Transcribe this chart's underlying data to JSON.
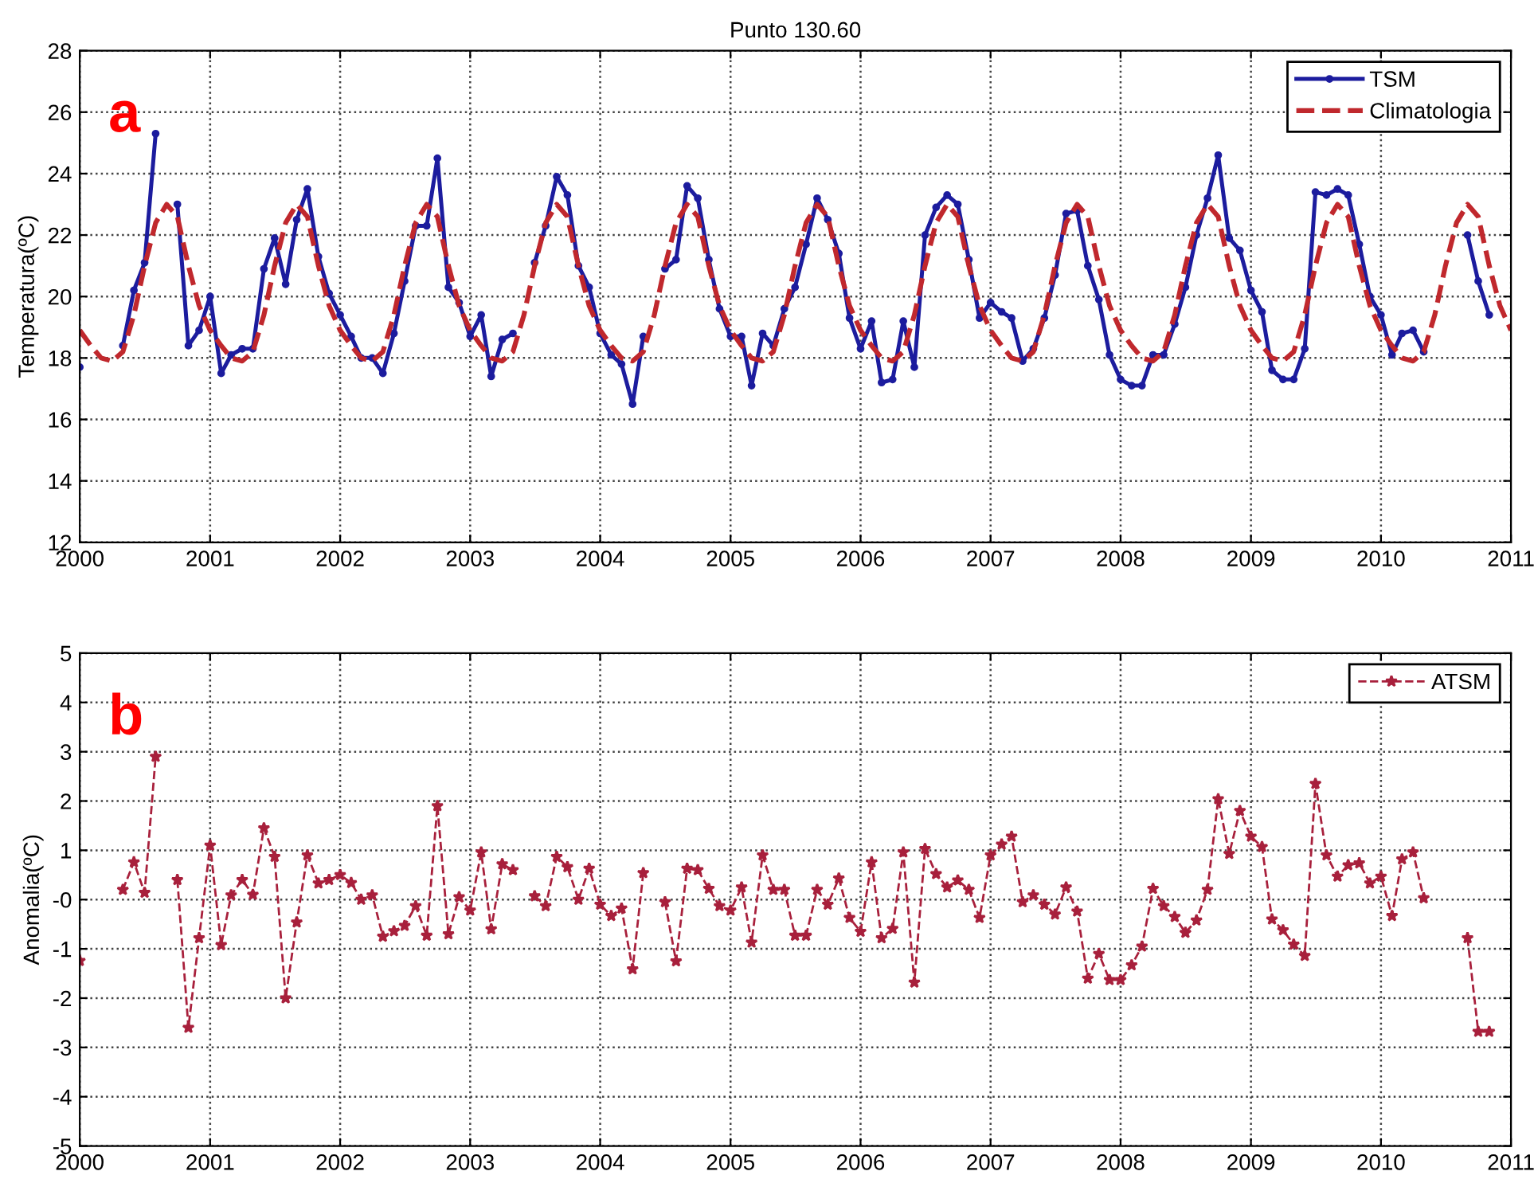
{
  "chart_data": [
    {
      "type": "line",
      "title": "Punto 130.60",
      "ylabel": "Temperatura(ºC)",
      "x": [
        "2000-01",
        "2000-02",
        "2000-03",
        "2000-04",
        "2000-05",
        "2000-06",
        "2000-07",
        "2000-08",
        "2000-09",
        "2000-10",
        "2000-11",
        "2000-12",
        "2001-01",
        "2001-02",
        "2001-03",
        "2001-04",
        "2001-05",
        "2001-06",
        "2001-07",
        "2001-08",
        "2001-09",
        "2001-10",
        "2001-11",
        "2001-12",
        "2002-01",
        "2002-02",
        "2002-03",
        "2002-04",
        "2002-05",
        "2002-06",
        "2002-07",
        "2002-08",
        "2002-09",
        "2002-10",
        "2002-11",
        "2002-12",
        "2003-01",
        "2003-02",
        "2003-03",
        "2003-04",
        "2003-05",
        "2003-06",
        "2003-07",
        "2003-08",
        "2003-09",
        "2003-10",
        "2003-11",
        "2003-12",
        "2004-01",
        "2004-02",
        "2004-03",
        "2004-04",
        "2004-05",
        "2004-06",
        "2004-07",
        "2004-08",
        "2004-09",
        "2004-10",
        "2004-11",
        "2004-12",
        "2005-01",
        "2005-02",
        "2005-03",
        "2005-04",
        "2005-05",
        "2005-06",
        "2005-07",
        "2005-08",
        "2005-09",
        "2005-10",
        "2005-11",
        "2005-12",
        "2006-01",
        "2006-02",
        "2006-03",
        "2006-04",
        "2006-05",
        "2006-06",
        "2006-07",
        "2006-08",
        "2006-09",
        "2006-10",
        "2006-11",
        "2006-12",
        "2007-01",
        "2007-02",
        "2007-03",
        "2007-04",
        "2007-05",
        "2007-06",
        "2007-07",
        "2007-08",
        "2007-09",
        "2007-10",
        "2007-11",
        "2007-12",
        "2008-01",
        "2008-02",
        "2008-03",
        "2008-04",
        "2008-05",
        "2008-06",
        "2008-07",
        "2008-08",
        "2008-09",
        "2008-10",
        "2008-11",
        "2008-12",
        "2009-01",
        "2009-02",
        "2009-03",
        "2009-04",
        "2009-05",
        "2009-06",
        "2009-07",
        "2009-08",
        "2009-09",
        "2009-10",
        "2009-11",
        "2009-12",
        "2010-01",
        "2010-02",
        "2010-03",
        "2010-04",
        "2010-05",
        "2010-06",
        "2010-07",
        "2010-08",
        "2010-09",
        "2010-10",
        "2010-11"
      ],
      "series": [
        {
          "name": "TSM",
          "color": "#1c1c9e",
          "marker": "circle",
          "line_style": "solid",
          "values": [
            17.7,
            null,
            null,
            null,
            18.4,
            20.2,
            21.1,
            25.3,
            null,
            23.0,
            18.4,
            18.9,
            20.0,
            17.5,
            18.1,
            18.3,
            18.3,
            20.9,
            21.9,
            20.4,
            22.5,
            23.5,
            21.3,
            20.1,
            19.4,
            18.7,
            18.0,
            18.0,
            17.5,
            18.8,
            20.5,
            22.3,
            22.3,
            24.5,
            20.3,
            19.8,
            18.7,
            19.4,
            17.4,
            18.6,
            18.8,
            null,
            21.1,
            22.3,
            23.9,
            23.3,
            21.0,
            20.3,
            18.8,
            18.1,
            17.8,
            16.5,
            18.7,
            null,
            20.9,
            21.2,
            23.6,
            23.2,
            21.2,
            19.6,
            18.7,
            18.7,
            17.1,
            18.8,
            18.4,
            19.6,
            20.3,
            21.7,
            23.2,
            22.5,
            21.4,
            19.3,
            18.3,
            19.2,
            17.2,
            17.3,
            19.2,
            17.7,
            22.0,
            22.9,
            23.3,
            23.0,
            21.2,
            19.3,
            19.8,
            19.5,
            19.3,
            17.9,
            18.3,
            19.3,
            20.7,
            22.7,
            22.8,
            21.0,
            19.9,
            18.1,
            17.3,
            17.1,
            17.1,
            18.1,
            18.1,
            19.1,
            20.3,
            22.0,
            23.2,
            24.6,
            21.9,
            21.5,
            20.2,
            19.5,
            17.6,
            17.3,
            17.3,
            18.3,
            23.4,
            23.3,
            23.5,
            23.3,
            21.7,
            20.0,
            19.4,
            18.1,
            18.8,
            18.9,
            18.2,
            null,
            null,
            null,
            22.0,
            20.5,
            19.4
          ]
        },
        {
          "name": "Climatologia",
          "color": "#c0282d",
          "marker": "none",
          "line_style": "dashed",
          "x": [
            "2000-01",
            "2000-02",
            "2000-03",
            "2000-04",
            "2000-05",
            "2000-06",
            "2000-07",
            "2000-08",
            "2000-09",
            "2000-10",
            "2000-11",
            "2000-12",
            "2001-01",
            "2001-02",
            "2001-03",
            "2001-04",
            "2001-05",
            "2001-06",
            "2001-07",
            "2001-08",
            "2001-09",
            "2001-10",
            "2001-11",
            "2001-12",
            "2002-01",
            "2002-02",
            "2002-03",
            "2002-04",
            "2002-05",
            "2002-06",
            "2002-07",
            "2002-08",
            "2002-09",
            "2002-10",
            "2002-11",
            "2002-12",
            "2003-01",
            "2003-02",
            "2003-03",
            "2003-04",
            "2003-05",
            "2003-06",
            "2003-07",
            "2003-08",
            "2003-09",
            "2003-10",
            "2003-11",
            "2003-12",
            "2004-01",
            "2004-02",
            "2004-03",
            "2004-04",
            "2004-05",
            "2004-06",
            "2004-07",
            "2004-08",
            "2004-09",
            "2004-10",
            "2004-11",
            "2004-12",
            "2005-01",
            "2005-02",
            "2005-03",
            "2005-04",
            "2005-05",
            "2005-06",
            "2005-07",
            "2005-08",
            "2005-09",
            "2005-10",
            "2005-11",
            "2005-12",
            "2006-01",
            "2006-02",
            "2006-03",
            "2006-04",
            "2006-05",
            "2006-06",
            "2006-07",
            "2006-08",
            "2006-09",
            "2006-10",
            "2006-11",
            "2006-12",
            "2007-01",
            "2007-02",
            "2007-03",
            "2007-04",
            "2007-05",
            "2007-06",
            "2007-07",
            "2007-08",
            "2007-09",
            "2007-10",
            "2007-11",
            "2007-12",
            "2008-01",
            "2008-02",
            "2008-03",
            "2008-04",
            "2008-05",
            "2008-06",
            "2008-07",
            "2008-08",
            "2008-09",
            "2008-10",
            "2008-11",
            "2008-12",
            "2009-01",
            "2009-02",
            "2009-03",
            "2009-04",
            "2009-05",
            "2009-06",
            "2009-07",
            "2009-08",
            "2009-09",
            "2009-10",
            "2009-11",
            "2009-12",
            "2010-01",
            "2010-02",
            "2010-03",
            "2010-04",
            "2010-05",
            "2010-06",
            "2010-07",
            "2010-08",
            "2010-09",
            "2010-10",
            "2010-11",
            "2010-12",
            "2011-01"
          ],
          "values": [
            18.9,
            18.4,
            18.0,
            17.9,
            18.2,
            19.4,
            21.0,
            22.4,
            23.0,
            22.6,
            21.0,
            19.7,
            18.9,
            18.4,
            18.0,
            17.9,
            18.2,
            19.4,
            21.0,
            22.4,
            23.0,
            22.6,
            21.0,
            19.7,
            18.9,
            18.4,
            18.0,
            17.9,
            18.2,
            19.4,
            21.0,
            22.4,
            23.0,
            22.6,
            21.0,
            19.7,
            18.9,
            18.4,
            18.0,
            17.9,
            18.2,
            19.4,
            21.0,
            22.4,
            23.0,
            22.6,
            21.0,
            19.7,
            18.9,
            18.4,
            18.0,
            17.9,
            18.2,
            19.4,
            21.0,
            22.4,
            23.0,
            22.6,
            21.0,
            19.7,
            18.9,
            18.4,
            18.0,
            17.9,
            18.2,
            19.4,
            21.0,
            22.4,
            23.0,
            22.6,
            21.0,
            19.7,
            18.9,
            18.4,
            18.0,
            17.9,
            18.2,
            19.4,
            21.0,
            22.4,
            23.0,
            22.6,
            21.0,
            19.7,
            18.9,
            18.4,
            18.0,
            17.9,
            18.2,
            19.4,
            21.0,
            22.4,
            23.0,
            22.6,
            21.0,
            19.7,
            18.9,
            18.4,
            18.0,
            17.9,
            18.2,
            19.4,
            21.0,
            22.4,
            23.0,
            22.6,
            21.0,
            19.7,
            18.9,
            18.4,
            18.0,
            17.9,
            18.2,
            19.4,
            21.0,
            22.4,
            23.0,
            22.6,
            21.0,
            19.7,
            18.9,
            18.4,
            18.0,
            17.9,
            18.2,
            19.4,
            21.0,
            22.4,
            23.0,
            22.6,
            21.0,
            19.7,
            18.9
          ]
        }
      ],
      "xlim": [
        "2000-01-01",
        "2011-01-01"
      ],
      "xticks": [
        "2000",
        "2001",
        "2002",
        "2003",
        "2004",
        "2005",
        "2006",
        "2007",
        "2008",
        "2009",
        "2010",
        "2011"
      ],
      "ylim": [
        12,
        28
      ],
      "yticks": [
        12,
        14,
        16,
        18,
        20,
        22,
        24,
        26,
        28
      ],
      "grid": true,
      "legend": "top right",
      "annotations": [
        "a"
      ]
    },
    {
      "type": "line",
      "ylabel": "Anomalia(ºC)",
      "x": [
        "2000-01",
        "2000-02",
        "2000-03",
        "2000-04",
        "2000-05",
        "2000-06",
        "2000-07",
        "2000-08",
        "2000-09",
        "2000-10",
        "2000-11",
        "2000-12",
        "2001-01",
        "2001-02",
        "2001-03",
        "2001-04",
        "2001-05",
        "2001-06",
        "2001-07",
        "2001-08",
        "2001-09",
        "2001-10",
        "2001-11",
        "2001-12",
        "2002-01",
        "2002-02",
        "2002-03",
        "2002-04",
        "2002-05",
        "2002-06",
        "2002-07",
        "2002-08",
        "2002-09",
        "2002-10",
        "2002-11",
        "2002-12",
        "2003-01",
        "2003-02",
        "2003-03",
        "2003-04",
        "2003-05",
        "2003-06",
        "2003-07",
        "2003-08",
        "2003-09",
        "2003-10",
        "2003-11",
        "2003-12",
        "2004-01",
        "2004-02",
        "2004-03",
        "2004-04",
        "2004-05",
        "2004-06",
        "2004-07",
        "2004-08",
        "2004-09",
        "2004-10",
        "2004-11",
        "2004-12",
        "2005-01",
        "2005-02",
        "2005-03",
        "2005-04",
        "2005-05",
        "2005-06",
        "2005-07",
        "2005-08",
        "2005-09",
        "2005-10",
        "2005-11",
        "2005-12",
        "2006-01",
        "2006-02",
        "2006-03",
        "2006-04",
        "2006-05",
        "2006-06",
        "2006-07",
        "2006-08",
        "2006-09",
        "2006-10",
        "2006-11",
        "2006-12",
        "2007-01",
        "2007-02",
        "2007-03",
        "2007-04",
        "2007-05",
        "2007-06",
        "2007-07",
        "2007-08",
        "2007-09",
        "2007-10",
        "2007-11",
        "2007-12",
        "2008-01",
        "2008-02",
        "2008-03",
        "2008-04",
        "2008-05",
        "2008-06",
        "2008-07",
        "2008-08",
        "2008-09",
        "2008-10",
        "2008-11",
        "2008-12",
        "2009-01",
        "2009-02",
        "2009-03",
        "2009-04",
        "2009-05",
        "2009-06",
        "2009-07",
        "2009-08",
        "2009-09",
        "2009-10",
        "2009-11",
        "2009-12",
        "2010-01",
        "2010-02",
        "2010-03",
        "2010-04",
        "2010-05",
        "2010-06",
        "2010-07",
        "2010-08",
        "2010-09",
        "2010-10",
        "2010-11"
      ],
      "series": [
        {
          "name": "ATSM",
          "color": "#a8203c",
          "marker": "star",
          "line_style": "dashed",
          "values": [
            -1.24,
            null,
            null,
            null,
            0.2,
            0.76,
            0.14,
            2.9,
            null,
            0.4,
            -2.6,
            -0.78,
            1.1,
            -0.92,
            0.09,
            0.4,
            0.1,
            1.45,
            0.87,
            -2.0,
            -0.46,
            0.9,
            0.33,
            0.4,
            0.5,
            0.34,
            0.0,
            0.09,
            -0.75,
            -0.64,
            -0.53,
            -0.13,
            -0.73,
            1.9,
            -0.7,
            0.05,
            -0.22,
            0.96,
            -0.6,
            0.72,
            0.6,
            null,
            0.07,
            -0.13,
            0.87,
            0.66,
            0.0,
            0.63,
            -0.1,
            -0.33,
            -0.18,
            -1.41,
            0.54,
            null,
            -0.05,
            -1.25,
            0.63,
            0.6,
            0.22,
            -0.13,
            -0.22,
            0.25,
            -0.87,
            0.9,
            0.2,
            0.2,
            -0.73,
            -0.73,
            0.2,
            -0.1,
            0.43,
            -0.37,
            -0.65,
            0.76,
            -0.78,
            -0.59,
            0.96,
            -1.68,
            1.03,
            0.52,
            0.25,
            0.39,
            0.2,
            -0.37,
            0.9,
            1.12,
            1.28,
            -0.05,
            0.09,
            -0.1,
            -0.3,
            0.25,
            -0.24,
            -1.6,
            -1.1,
            -1.63,
            -1.63,
            -1.33,
            -0.95,
            0.22,
            -0.13,
            -0.35,
            -0.67,
            -0.42,
            0.2,
            2.04,
            0.93,
            1.8,
            1.28,
            1.07,
            -0.4,
            -0.62,
            -0.91,
            -1.14,
            2.35,
            0.9,
            0.47,
            0.7,
            0.74,
            0.33,
            0.47,
            -0.33,
            0.82,
            0.96,
            0.03,
            null,
            null,
            null,
            -0.78,
            -2.68,
            -2.68
          ]
        }
      ],
      "xlim": [
        "2000-01-01",
        "2011-01-01"
      ],
      "xticks": [
        "2000",
        "2001",
        "2002",
        "2003",
        "2004",
        "2005",
        "2006",
        "2007",
        "2008",
        "2009",
        "2010",
        "2011"
      ],
      "ylim": [
        -5,
        5
      ],
      "yticks": [
        -5,
        -4,
        -3,
        -2,
        -1,
        {
          "value": 0,
          "label": "-0"
        },
        1,
        2,
        3,
        4,
        5
      ],
      "grid": true,
      "legend": "top right",
      "annotations": [
        "b"
      ]
    }
  ]
}
